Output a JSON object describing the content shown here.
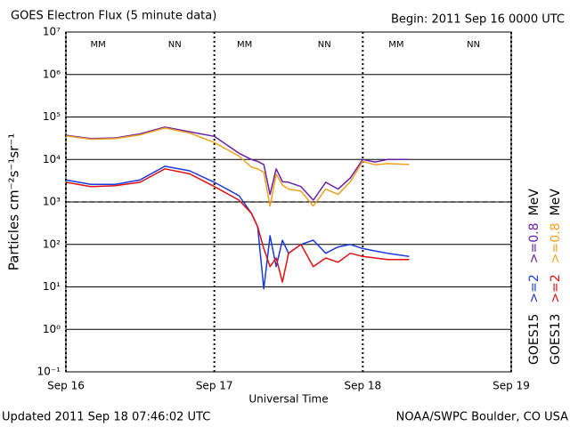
{
  "chart_data": {
    "type": "line",
    "title": "GOES Electron Flux (5 minute data)",
    "subtitle": "Begin: 2011 Sep 16 0000 UTC",
    "xlabel": "Universal Time",
    "ylabel": "Particles cm⁻²s⁻¹sr⁻¹",
    "log_y": true,
    "grid": true,
    "xlim": [
      0,
      72
    ],
    "xticks": [
      {
        "value": 0,
        "label": "Sep 16"
      },
      {
        "value": 24,
        "label": "Sep 17"
      },
      {
        "value": 48,
        "label": "Sep 18"
      },
      {
        "value": 72,
        "label": "Sep 19"
      }
    ],
    "ylim": [
      0.1,
      10000000
    ],
    "yticks": [
      {
        "value": 0.1,
        "label": "10⁻¹"
      },
      {
        "value": 1,
        "label": "10⁰"
      },
      {
        "value": 10,
        "label": "10¹"
      },
      {
        "value": 100,
        "label": "10²"
      },
      {
        "value": 1000,
        "label": "10³"
      },
      {
        "value": 10000,
        "label": "10⁴"
      },
      {
        "value": 100000,
        "label": "10⁵"
      },
      {
        "value": 1000000,
        "label": "10⁶"
      },
      {
        "value": 10000000,
        "label": "10⁷"
      }
    ],
    "threshold": 1000,
    "x": [
      0,
      4,
      8,
      12,
      16,
      20,
      24,
      28,
      30,
      31,
      32,
      33,
      34,
      35,
      36,
      38,
      40,
      42,
      44,
      46,
      48,
      50,
      52,
      55.5
    ],
    "series": [
      {
        "name": ">=0.8",
        "satellite": "GOES15",
        "color": "#6a1fa6",
        "values": [
          37000,
          31000,
          32000,
          40000,
          58000,
          45000,
          35000,
          14000,
          10000,
          9000,
          7600,
          1500,
          6000,
          3000,
          2900,
          2300,
          1100,
          2900,
          2000,
          3700,
          10000,
          8700,
          10000,
          10000
        ]
      },
      {
        "name": ">=0.8",
        "satellite": "GOES13",
        "color": "#f0a020",
        "values": [
          36000,
          30000,
          31000,
          38000,
          55000,
          42000,
          25000,
          12000,
          6600,
          6000,
          5000,
          800,
          4500,
          2500,
          2000,
          1800,
          800,
          2000,
          1500,
          3000,
          9000,
          7500,
          8000,
          7600
        ]
      },
      {
        "name": ">=2",
        "satellite": "GOES15",
        "color": "#1a3ae0",
        "values": [
          3300,
          2600,
          2600,
          3300,
          6900,
          5400,
          2900,
          1400,
          540,
          260,
          9,
          160,
          30,
          125,
          62,
          100,
          126,
          62,
          87,
          100,
          80,
          70,
          62,
          52
        ]
      },
      {
        "name": ">=2",
        "satellite": "GOES13",
        "color": "#e01010",
        "values": [
          2900,
          2300,
          2400,
          2900,
          6000,
          4600,
          2300,
          1100,
          540,
          260,
          80,
          30,
          48,
          13,
          62,
          100,
          30,
          48,
          38,
          62,
          52,
          48,
          44,
          44
        ]
      }
    ],
    "unit": "MeV",
    "markers": [
      {
        "label": "MM",
        "x": 5.2
      },
      {
        "label": "NN",
        "x": 17.6
      },
      {
        "label": "MM",
        "x": 28.9
      },
      {
        "label": "NN",
        "x": 41.8
      },
      {
        "label": "MM",
        "x": 53.4
      },
      {
        "label": "NN",
        "x": 65.9
      }
    ]
  },
  "footer": {
    "updated": "Updated 2011 Sep 18 07:46:02 UTC",
    "credit": "NOAA/SWPC Boulder, CO USA"
  }
}
